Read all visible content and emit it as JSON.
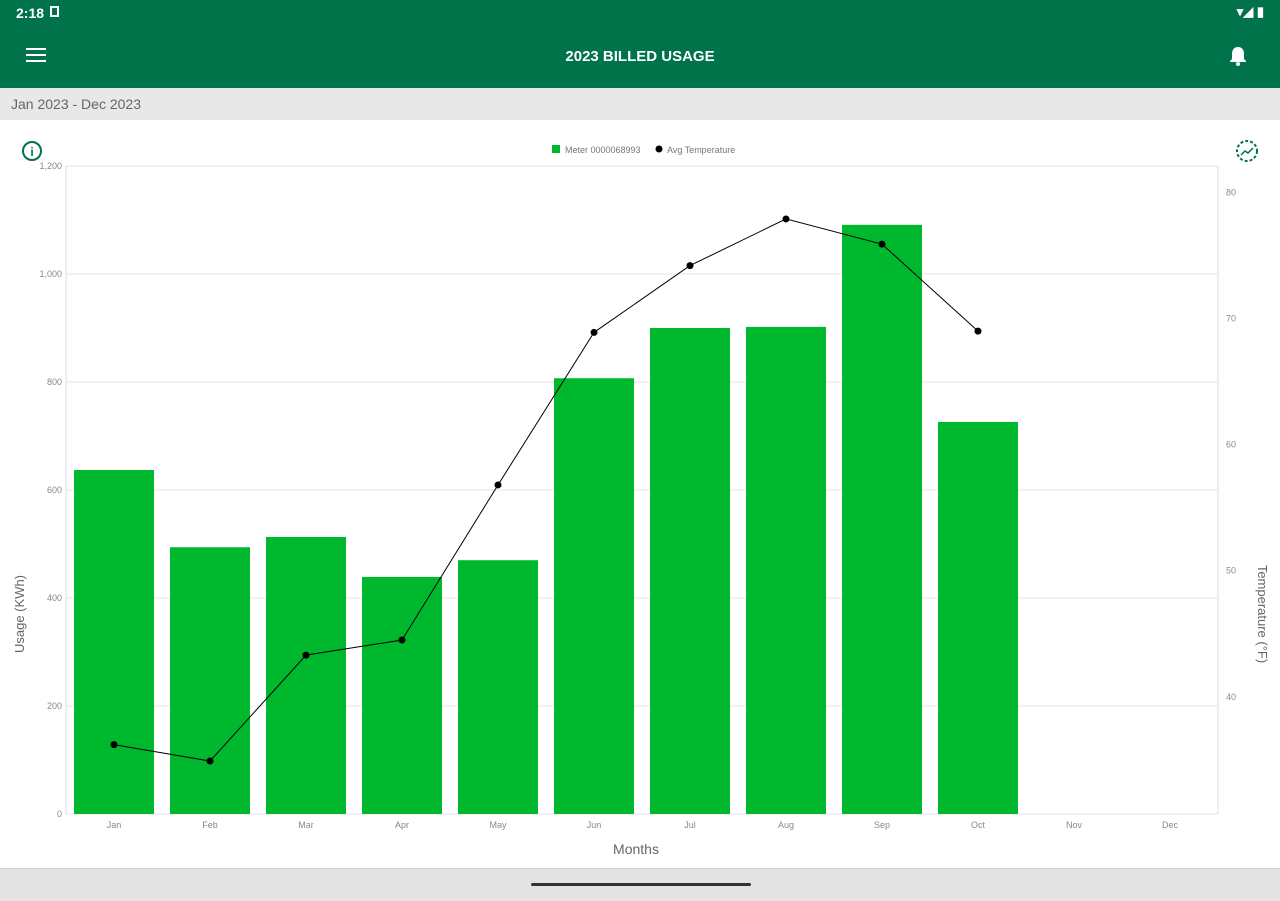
{
  "status": {
    "time": "2:18"
  },
  "header": {
    "title": "2023 BILLED USAGE"
  },
  "date_range": "Jan 2023 - Dec 2023",
  "colors": {
    "brand": "#00734a",
    "bar": "#00b82e",
    "line": "#000000"
  },
  "chart_data": {
    "type": "bar",
    "categories": [
      "Jan",
      "Feb",
      "Mar",
      "Apr",
      "May",
      "Jun",
      "Jul",
      "Aug",
      "Sep",
      "Oct",
      "Nov",
      "Dec"
    ],
    "series": [
      {
        "name": "Meter 0000068993",
        "type": "bar",
        "axis": "left",
        "values": [
          637,
          494,
          513,
          439,
          470,
          807,
          900,
          902,
          1091,
          726,
          null,
          null
        ]
      },
      {
        "name": "Avg Temperature",
        "type": "line",
        "axis": "right",
        "values": [
          36.2,
          34.9,
          43.3,
          44.5,
          56.8,
          68.9,
          74.2,
          77.9,
          75.9,
          69.0,
          null,
          null
        ]
      }
    ],
    "xlabel": "Months",
    "ylabel": "Usage (KWh)",
    "y2label": "Temperature (°F)",
    "ylim": [
      0,
      1200
    ],
    "yticks": [
      0,
      200,
      400,
      600,
      800,
      "1,000",
      "1,200"
    ],
    "y2lim": [
      30.7,
      82.1
    ],
    "y2ticks": [
      40,
      50,
      60,
      70,
      80
    ],
    "legend": "top-center",
    "grid": true
  }
}
